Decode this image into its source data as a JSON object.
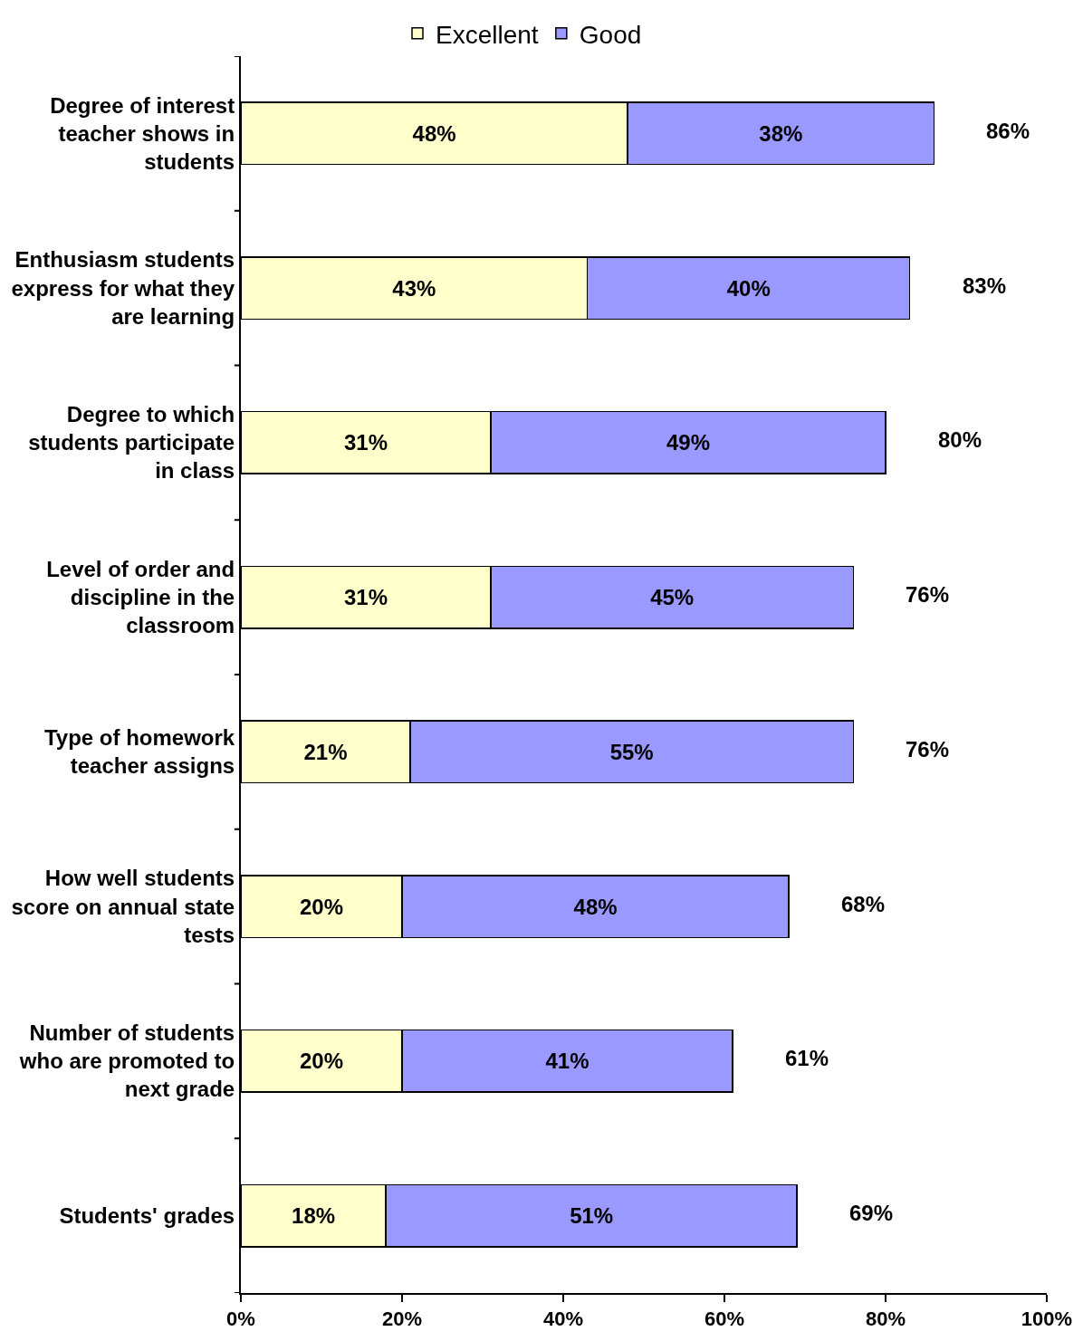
{
  "chart_data": {
    "type": "bar",
    "orientation": "horizontal",
    "stacked": true,
    "categories": [
      "Degree of interest teacher shows in students",
      "Enthusiasm students express for what they are learning",
      "Degree to which students participate in class",
      "Level of order and discipline in the classroom",
      "Type of homework teacher assigns",
      "How well students score on annual state tests",
      "Number of students who are promoted to next grade",
      "Students' grades"
    ],
    "series": [
      {
        "name": "Excellent",
        "color": "#ffffcc",
        "values": [
          48,
          43,
          31,
          31,
          21,
          20,
          20,
          18
        ],
        "value_labels": [
          "48%",
          "43%",
          "31%",
          "31%",
          "21%",
          "20%",
          "20%",
          "18%"
        ]
      },
      {
        "name": "Good",
        "color": "#9999ff",
        "values": [
          38,
          40,
          49,
          45,
          55,
          48,
          41,
          51
        ],
        "value_labels": [
          "38%",
          "40%",
          "49%",
          "45%",
          "55%",
          "48%",
          "41%",
          "51%"
        ]
      }
    ],
    "totals": [
      "86%",
      "83%",
      "80%",
      "76%",
      "76%",
      "68%",
      "61%",
      "69%"
    ],
    "xlim": [
      0,
      100
    ],
    "xticks": [
      {
        "value": 0,
        "label": "0%"
      },
      {
        "value": 20,
        "label": "20%"
      },
      {
        "value": 40,
        "label": "40%"
      },
      {
        "value": 60,
        "label": "60%"
      },
      {
        "value": 80,
        "label": "80%"
      },
      {
        "value": 100,
        "label": "100%"
      }
    ],
    "legend": "top"
  }
}
